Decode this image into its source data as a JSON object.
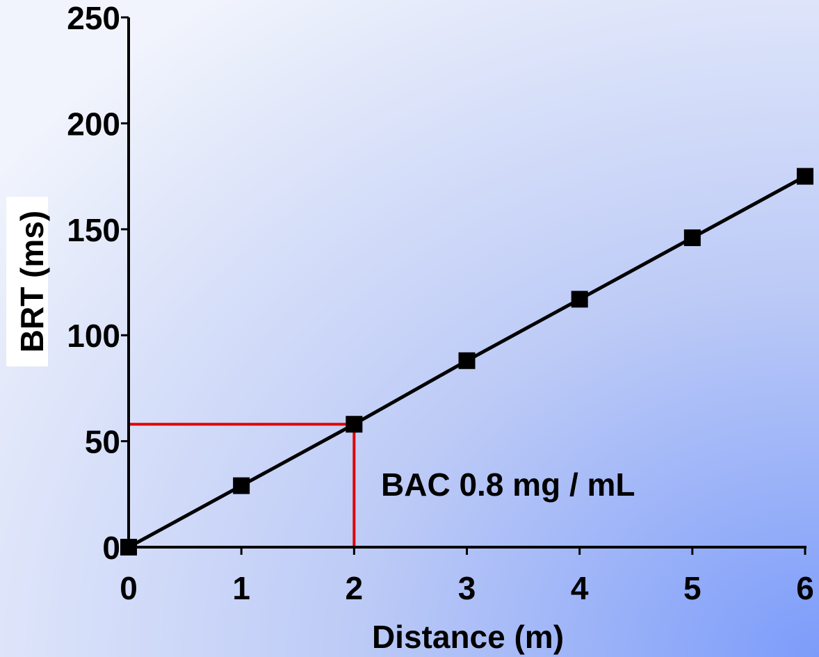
{
  "chart_data": {
    "type": "line",
    "title": "",
    "xlabel": "Distance (m)",
    "ylabel": "BRT (ms)",
    "x": [
      0,
      1,
      2,
      3,
      4,
      5,
      6
    ],
    "series": [
      {
        "values": [
          0,
          29,
          58,
          88,
          117,
          146,
          175
        ]
      }
    ],
    "xlim": [
      0,
      6
    ],
    "ylim": [
      0,
      250
    ],
    "x_ticks": [
      0,
      1,
      2,
      3,
      4,
      5,
      6
    ],
    "y_ticks": [
      0,
      50,
      100,
      150,
      200,
      250
    ],
    "grid": false,
    "marker": "square",
    "colors": {
      "line": "#000000",
      "highlight": "#e00000"
    },
    "highlight_point": {
      "x": 2,
      "y": 58
    },
    "annotation": "BAC 0.8 mg / mL"
  }
}
